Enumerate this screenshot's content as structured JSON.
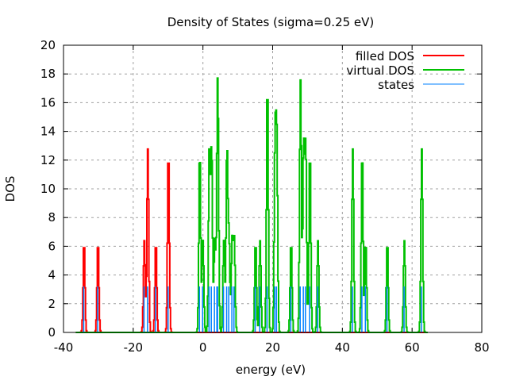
{
  "chart_data": {
    "type": "line",
    "title": "Density of States (sigma=0.25 eV)",
    "xlabel": "energy (eV)",
    "ylabel": "DOS",
    "xlim": [
      -40,
      80
    ],
    "ylim": [
      0,
      20
    ],
    "xticks": [
      "-40",
      "-20",
      "0",
      "20",
      "40",
      "60",
      "80"
    ],
    "yticks": [
      "0",
      "2",
      "4",
      "6",
      "8",
      "10",
      "12",
      "14",
      "16",
      "18",
      "20"
    ],
    "grid": true,
    "legend_position": "top-right",
    "sigma": 0.25,
    "state_marker_height": 3.2,
    "series": [
      {
        "name": "filled DOS",
        "color": "#ff0000",
        "range": [
          -36.5,
          64.5
        ],
        "states": [
          [
            -34.2,
            4
          ],
          [
            -30.2,
            4
          ],
          [
            -16.9,
            4
          ],
          [
            -15.9,
            8
          ],
          [
            -13.6,
            4
          ],
          [
            -10.0,
            8
          ]
        ]
      },
      {
        "name": "virtual DOS",
        "color": "#00c000",
        "range": [
          -36.5,
          64.7
        ],
        "states": [
          [
            -1.0,
            8
          ],
          [
            -0.1,
            4
          ],
          [
            1.75,
            8
          ],
          [
            2.4,
            8
          ],
          [
            3.3,
            4
          ],
          [
            4.0,
            4
          ],
          [
            4.2,
            8
          ],
          [
            5.9,
            4
          ],
          [
            6.8,
            8
          ],
          [
            7.4,
            4
          ],
          [
            8.3,
            4
          ],
          [
            8.9,
            4
          ],
          [
            15.0,
            4
          ],
          [
            16.3,
            4
          ],
          [
            18.4,
            11
          ],
          [
            20.6,
            8
          ],
          [
            21.1,
            8
          ],
          [
            25.2,
            4
          ],
          [
            27.9,
            11
          ],
          [
            28.8,
            8
          ],
          [
            29.4,
            8
          ],
          [
            30.6,
            8
          ],
          [
            32.9,
            4
          ],
          [
            42.9,
            8
          ],
          [
            45.6,
            8
          ],
          [
            46.6,
            4
          ],
          [
            52.8,
            4
          ],
          [
            57.7,
            4
          ],
          [
            62.7,
            8
          ]
        ]
      },
      {
        "name": "states",
        "color": "#0080ff"
      }
    ]
  }
}
